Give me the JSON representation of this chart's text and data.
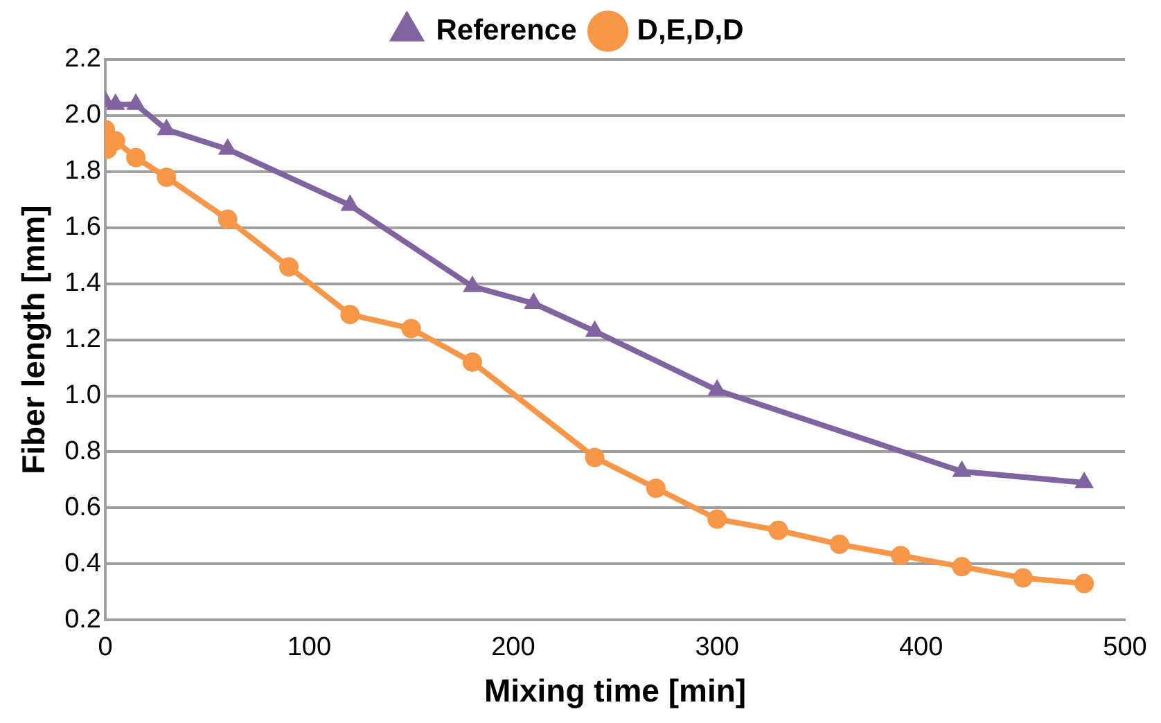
{
  "chart_data": {
    "type": "line",
    "xlabel": "Mixing time [min]",
    "ylabel": "Fiber length [mm]",
    "xlim": [
      0,
      500
    ],
    "xticks": [
      0,
      100,
      200,
      300,
      400,
      500
    ],
    "ylim": [
      0.2,
      2.2
    ],
    "yticks": [
      0.2,
      0.4,
      0.6,
      0.8,
      {
        "value": 1,
        "label": "1.0"
      },
      1.2,
      1.4,
      1.6,
      1.8,
      {
        "value": 2,
        "label": "2.0"
      },
      2.2
    ],
    "grid": "y",
    "legend": "top",
    "line_style": "solid",
    "series": [
      {
        "name": "Reference",
        "color": "#8064a2",
        "marker": "triangle",
        "x": [
          0,
          5,
          15,
          30,
          60,
          120,
          180,
          210,
          240,
          300,
          420,
          480
        ],
        "values": [
          2.05,
          2.04,
          2.04,
          1.95,
          1.88,
          1.68,
          1.39,
          1.33,
          1.23,
          1.02,
          0.73,
          0.69
        ]
      },
      {
        "name": "D,E,D,D",
        "color": "#f79646",
        "marker": "circle",
        "x": [
          0,
          1,
          5,
          15,
          30,
          60,
          90,
          120,
          150,
          180,
          240,
          270,
          300,
          330,
          360,
          390,
          420,
          450,
          480
        ],
        "values": [
          1.95,
          1.88,
          1.91,
          1.85,
          1.78,
          1.63,
          1.46,
          1.29,
          1.24,
          1.12,
          0.78,
          0.67,
          0.56,
          0.52,
          0.47,
          0.43,
          0.39,
          0.35,
          0.33
        ]
      }
    ]
  }
}
